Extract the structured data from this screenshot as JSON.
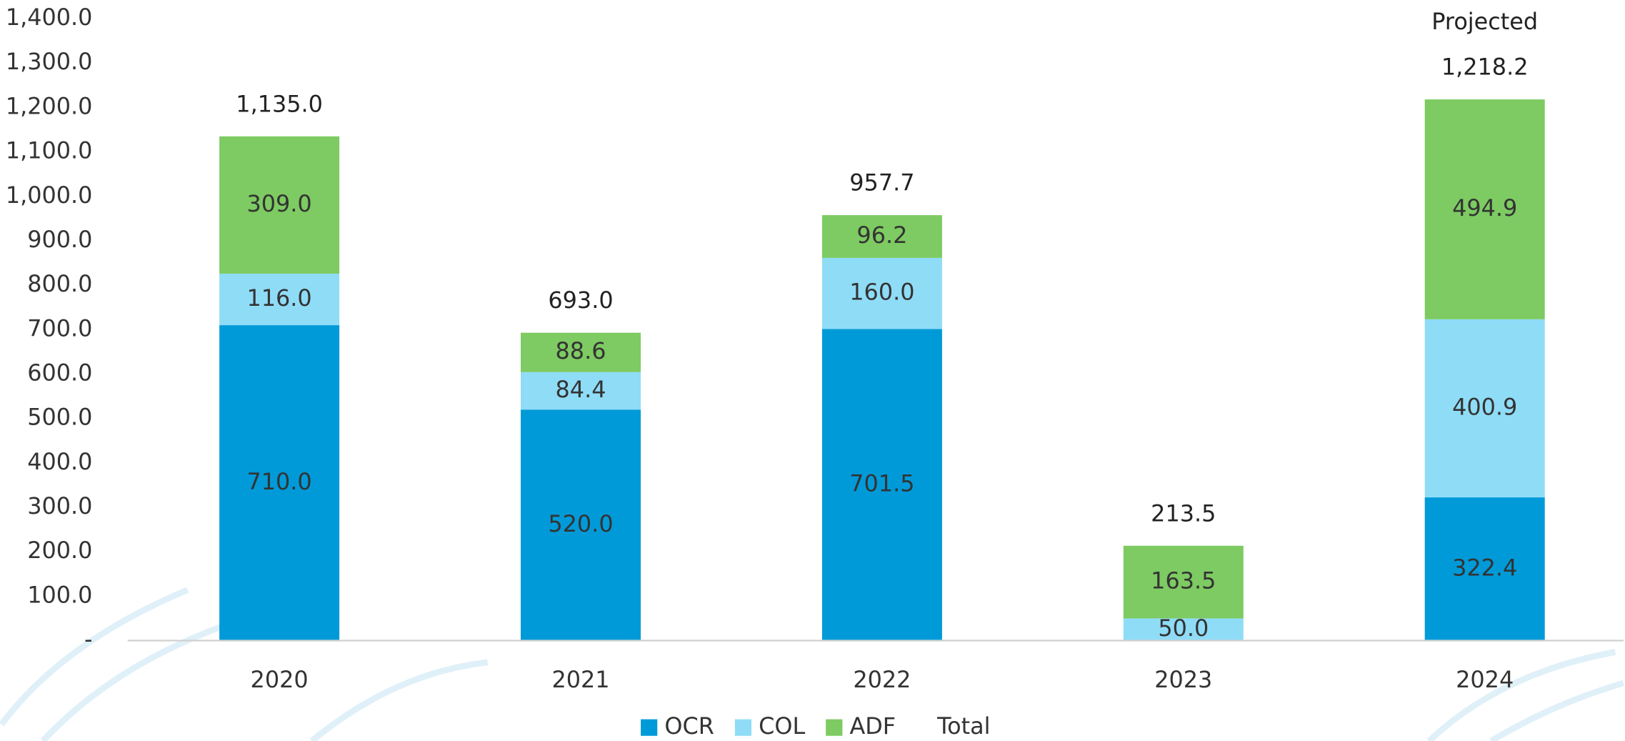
{
  "chart_data": {
    "type": "stacked_bar",
    "categories": [
      "2020",
      "2021",
      "2022",
      "2023",
      "2024"
    ],
    "series": [
      {
        "name": "OCR",
        "color": "#009ad8",
        "values": [
          710,
          520,
          701.5,
          null,
          322.4
        ],
        "value_labels": [
          "710.0",
          "520.0",
          "701.5",
          null,
          "322.4"
        ]
      },
      {
        "name": "COL",
        "color": "#8fdcf7",
        "values": [
          116,
          84.4,
          160,
          50,
          400.9
        ],
        "value_labels": [
          "116.0",
          "84.4",
          "160.0",
          "50.0",
          "400.9"
        ]
      },
      {
        "name": "ADF",
        "color": "#7dcb62",
        "values": [
          309,
          88.6,
          96.2,
          163.5,
          494.9
        ],
        "value_labels": [
          "309.0",
          "88.6",
          "96.2",
          "163.5",
          "494.9"
        ]
      }
    ],
    "totals": {
      "name": "Total",
      "values": [
        1135,
        693,
        957.7,
        213.5,
        1218.2
      ],
      "value_labels": [
        "1,135.0",
        "693.0",
        "957.7",
        "213.5",
        "1,218.2"
      ]
    },
    "annotations": [
      {
        "text": "Projected",
        "category": "2024"
      }
    ],
    "ylim": [
      0,
      1400
    ],
    "yticks": [
      {
        "value": 0,
        "label": "-"
      },
      {
        "value": 100,
        "label": "100.0"
      },
      {
        "value": 200,
        "label": "200.0"
      },
      {
        "value": 300,
        "label": "300.0"
      },
      {
        "value": 400,
        "label": "400.0"
      },
      {
        "value": 500,
        "label": "500.0"
      },
      {
        "value": 600,
        "label": "600.0"
      },
      {
        "value": 700,
        "label": "700.0"
      },
      {
        "value": 800,
        "label": "800.0"
      },
      {
        "value": 900,
        "label": "900.0"
      },
      {
        "value": 1000,
        "label": "1,000.0"
      },
      {
        "value": 1100,
        "label": "1,100.0"
      },
      {
        "value": 1200,
        "label": "1,200.0"
      },
      {
        "value": 1300,
        "label": "1,300.0"
      },
      {
        "value": 1400,
        "label": "1,400.0"
      }
    ],
    "legend": "bottom"
  }
}
